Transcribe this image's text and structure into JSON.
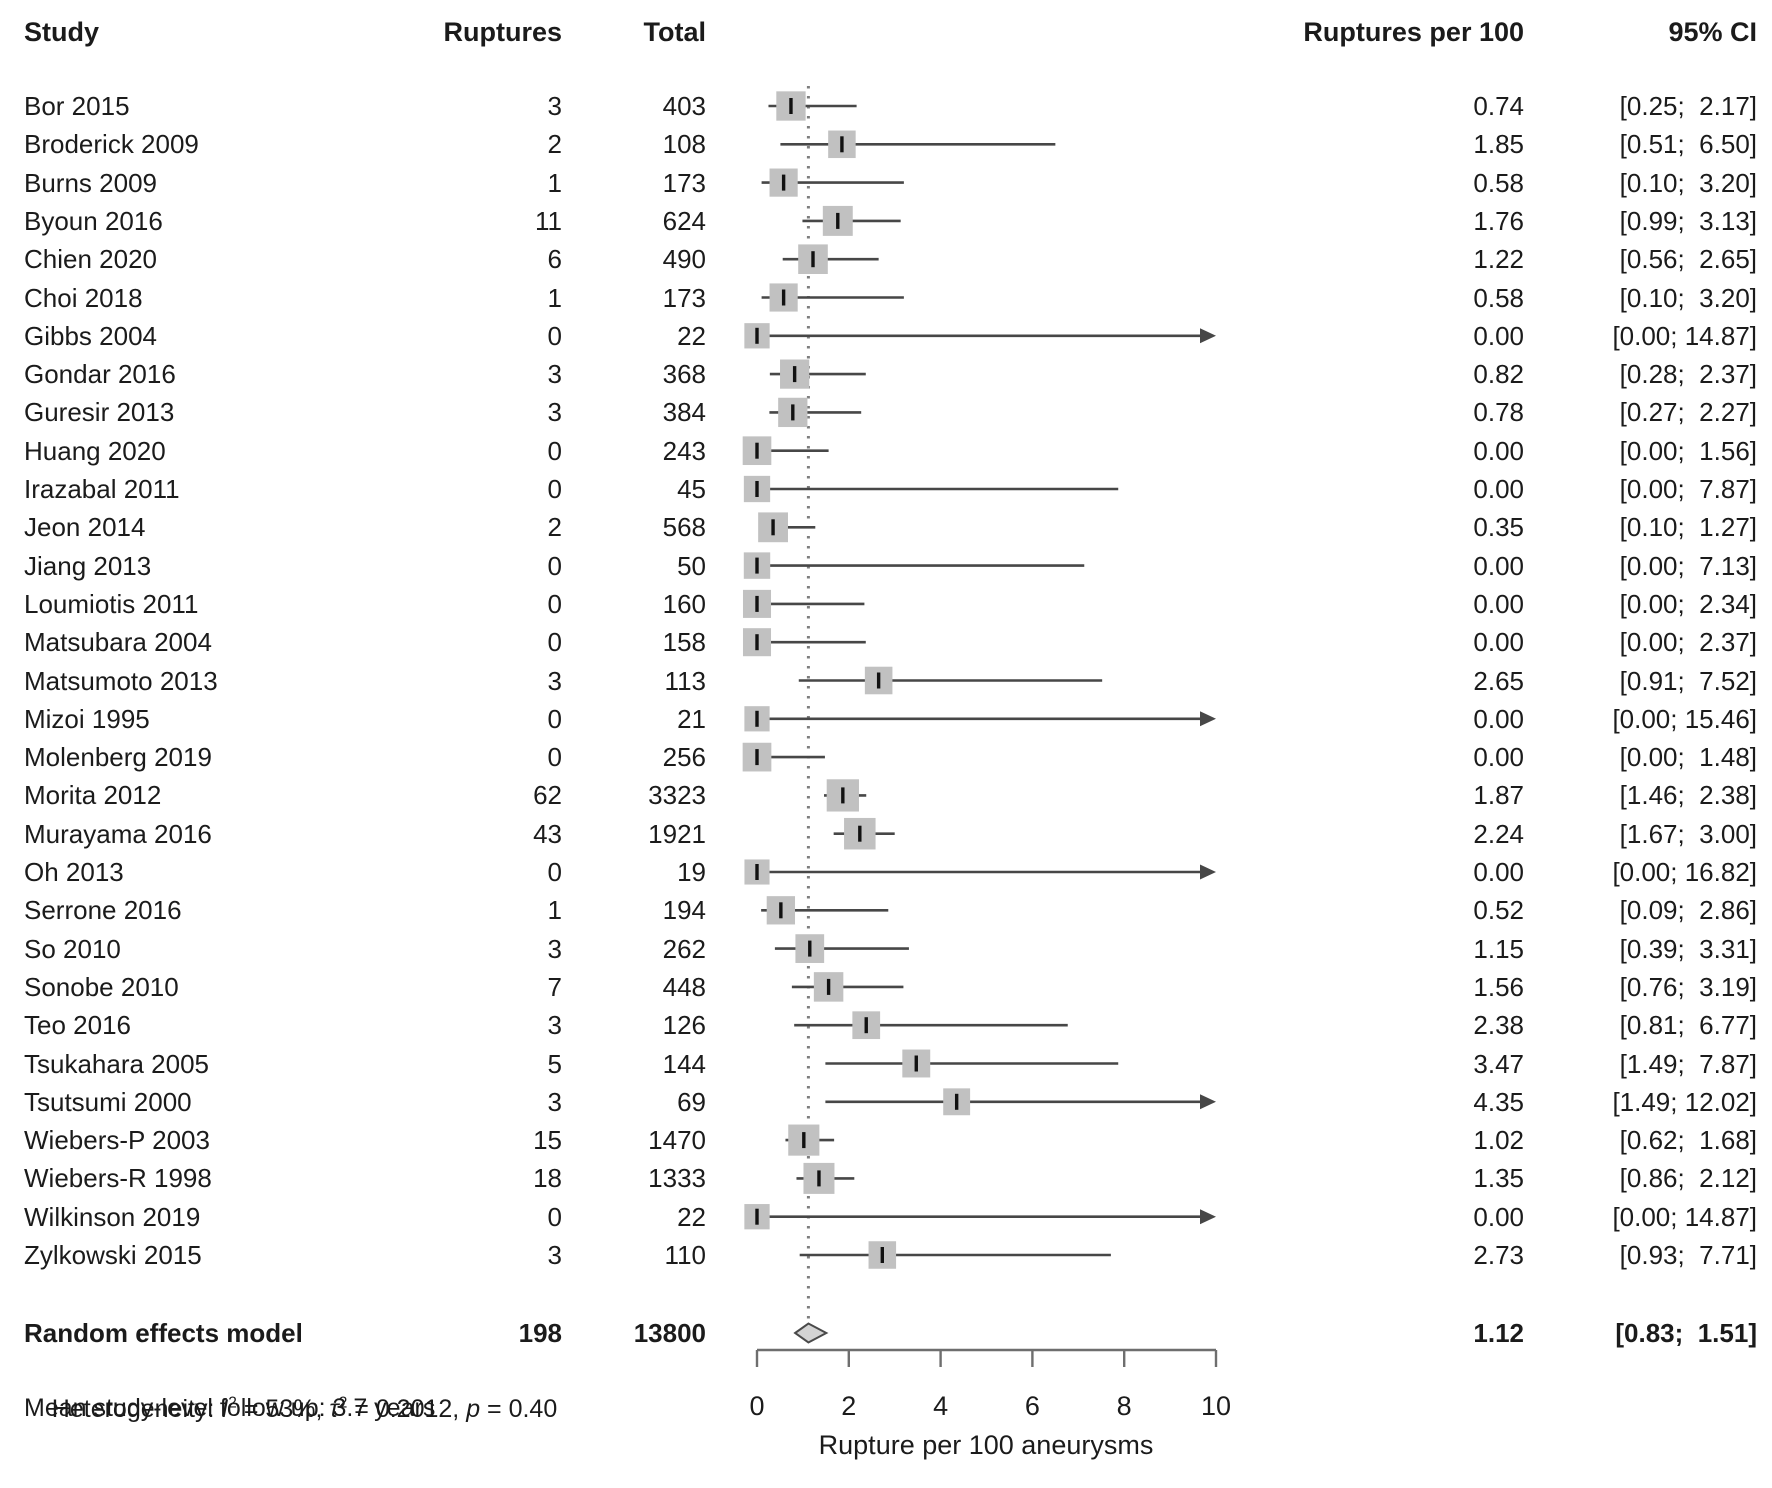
{
  "headers": {
    "study": "Study",
    "ruptures": "Ruptures",
    "total": "Total",
    "rate": "Ruptures per 100",
    "ci": "95% CI"
  },
  "chart_data": {
    "type": "forest",
    "xlabel": "Rupture per 100 aneurysms",
    "axis": {
      "min": 0,
      "max": 10,
      "ticks": [
        0,
        2,
        4,
        6,
        8,
        10
      ]
    },
    "pooled_reference_line": 1.12,
    "studies": [
      {
        "name": "Bor 2015",
        "ruptures": "3",
        "total": "403",
        "total_n": 403,
        "rate": "0.74",
        "est": 0.74,
        "lo": 0.25,
        "hi": 2.17,
        "ci": "[0.25;  2.17]"
      },
      {
        "name": "Broderick 2009",
        "ruptures": "2",
        "total": "108",
        "total_n": 108,
        "rate": "1.85",
        "est": 1.85,
        "lo": 0.51,
        "hi": 6.5,
        "ci": "[0.51;  6.50]"
      },
      {
        "name": "Burns 2009",
        "ruptures": "1",
        "total": "173",
        "total_n": 173,
        "rate": "0.58",
        "est": 0.58,
        "lo": 0.1,
        "hi": 3.2,
        "ci": "[0.10;  3.20]"
      },
      {
        "name": "Byoun 2016",
        "ruptures": "11",
        "total": "624",
        "total_n": 624,
        "rate": "1.76",
        "est": 1.76,
        "lo": 0.99,
        "hi": 3.13,
        "ci": "[0.99;  3.13]"
      },
      {
        "name": "Chien 2020",
        "ruptures": "6",
        "total": "490",
        "total_n": 490,
        "rate": "1.22",
        "est": 1.22,
        "lo": 0.56,
        "hi": 2.65,
        "ci": "[0.56;  2.65]"
      },
      {
        "name": "Choi 2018",
        "ruptures": "1",
        "total": "173",
        "total_n": 173,
        "rate": "0.58",
        "est": 0.58,
        "lo": 0.1,
        "hi": 3.2,
        "ci": "[0.10;  3.20]"
      },
      {
        "name": "Gibbs 2004",
        "ruptures": "0",
        "total": "22",
        "total_n": 22,
        "rate": "0.00",
        "est": 0.0,
        "lo": 0.0,
        "hi": 14.87,
        "ci": "[0.00; 14.87]"
      },
      {
        "name": "Gondar 2016",
        "ruptures": "3",
        "total": "368",
        "total_n": 368,
        "rate": "0.82",
        "est": 0.82,
        "lo": 0.28,
        "hi": 2.37,
        "ci": "[0.28;  2.37]"
      },
      {
        "name": "Guresir 2013",
        "ruptures": "3",
        "total": "384",
        "total_n": 384,
        "rate": "0.78",
        "est": 0.78,
        "lo": 0.27,
        "hi": 2.27,
        "ci": "[0.27;  2.27]"
      },
      {
        "name": "Huang 2020",
        "ruptures": "0",
        "total": "243",
        "total_n": 243,
        "rate": "0.00",
        "est": 0.0,
        "lo": 0.0,
        "hi": 1.56,
        "ci": "[0.00;  1.56]"
      },
      {
        "name": "Irazabal 2011",
        "ruptures": "0",
        "total": "45",
        "total_n": 45,
        "rate": "0.00",
        "est": 0.0,
        "lo": 0.0,
        "hi": 7.87,
        "ci": "[0.00;  7.87]"
      },
      {
        "name": "Jeon 2014",
        "ruptures": "2",
        "total": "568",
        "total_n": 568,
        "rate": "0.35",
        "est": 0.35,
        "lo": 0.1,
        "hi": 1.27,
        "ci": "[0.10;  1.27]"
      },
      {
        "name": "Jiang 2013",
        "ruptures": "0",
        "total": "50",
        "total_n": 50,
        "rate": "0.00",
        "est": 0.0,
        "lo": 0.0,
        "hi": 7.13,
        "ci": "[0.00;  7.13]"
      },
      {
        "name": "Loumiotis 2011",
        "ruptures": "0",
        "total": "160",
        "total_n": 160,
        "rate": "0.00",
        "est": 0.0,
        "lo": 0.0,
        "hi": 2.34,
        "ci": "[0.00;  2.34]"
      },
      {
        "name": "Matsubara 2004",
        "ruptures": "0",
        "total": "158",
        "total_n": 158,
        "rate": "0.00",
        "est": 0.0,
        "lo": 0.0,
        "hi": 2.37,
        "ci": "[0.00;  2.37]"
      },
      {
        "name": "Matsumoto 2013",
        "ruptures": "3",
        "total": "113",
        "total_n": 113,
        "rate": "2.65",
        "est": 2.65,
        "lo": 0.91,
        "hi": 7.52,
        "ci": "[0.91;  7.52]"
      },
      {
        "name": "Mizoi 1995",
        "ruptures": "0",
        "total": "21",
        "total_n": 21,
        "rate": "0.00",
        "est": 0.0,
        "lo": 0.0,
        "hi": 15.46,
        "ci": "[0.00; 15.46]"
      },
      {
        "name": "Molenberg 2019",
        "ruptures": "0",
        "total": "256",
        "total_n": 256,
        "rate": "0.00",
        "est": 0.0,
        "lo": 0.0,
        "hi": 1.48,
        "ci": "[0.00;  1.48]"
      },
      {
        "name": "Morita 2012",
        "ruptures": "62",
        "total": "3323",
        "total_n": 3323,
        "rate": "1.87",
        "est": 1.87,
        "lo": 1.46,
        "hi": 2.38,
        "ci": "[1.46;  2.38]"
      },
      {
        "name": "Murayama 2016",
        "ruptures": "43",
        "total": "1921",
        "total_n": 1921,
        "rate": "2.24",
        "est": 2.24,
        "lo": 1.67,
        "hi": 3.0,
        "ci": "[1.67;  3.00]"
      },
      {
        "name": "Oh 2013",
        "ruptures": "0",
        "total": "19",
        "total_n": 19,
        "rate": "0.00",
        "est": 0.0,
        "lo": 0.0,
        "hi": 16.82,
        "ci": "[0.00; 16.82]"
      },
      {
        "name": "Serrone 2016",
        "ruptures": "1",
        "total": "194",
        "total_n": 194,
        "rate": "0.52",
        "est": 0.52,
        "lo": 0.09,
        "hi": 2.86,
        "ci": "[0.09;  2.86]"
      },
      {
        "name": "So 2010",
        "ruptures": "3",
        "total": "262",
        "total_n": 262,
        "rate": "1.15",
        "est": 1.15,
        "lo": 0.39,
        "hi": 3.31,
        "ci": "[0.39;  3.31]"
      },
      {
        "name": "Sonobe 2010",
        "ruptures": "7",
        "total": "448",
        "total_n": 448,
        "rate": "1.56",
        "est": 1.56,
        "lo": 0.76,
        "hi": 3.19,
        "ci": "[0.76;  3.19]"
      },
      {
        "name": "Teo 2016",
        "ruptures": "3",
        "total": "126",
        "total_n": 126,
        "rate": "2.38",
        "est": 2.38,
        "lo": 0.81,
        "hi": 6.77,
        "ci": "[0.81;  6.77]"
      },
      {
        "name": "Tsukahara 2005",
        "ruptures": "5",
        "total": "144",
        "total_n": 144,
        "rate": "3.47",
        "est": 3.47,
        "lo": 1.49,
        "hi": 7.87,
        "ci": "[1.49;  7.87]"
      },
      {
        "name": "Tsutsumi 2000",
        "ruptures": "3",
        "total": "69",
        "total_n": 69,
        "rate": "4.35",
        "est": 4.35,
        "lo": 1.49,
        "hi": 12.02,
        "ci": "[1.49; 12.02]"
      },
      {
        "name": "Wiebers-P 2003",
        "ruptures": "15",
        "total": "1470",
        "total_n": 1470,
        "rate": "1.02",
        "est": 1.02,
        "lo": 0.62,
        "hi": 1.68,
        "ci": "[0.62;  1.68]"
      },
      {
        "name": "Wiebers-R 1998",
        "ruptures": "18",
        "total": "1333",
        "total_n": 1333,
        "rate": "1.35",
        "est": 1.35,
        "lo": 0.86,
        "hi": 2.12,
        "ci": "[0.86;  2.12]"
      },
      {
        "name": "Wilkinson 2019",
        "ruptures": "0",
        "total": "22",
        "total_n": 22,
        "rate": "0.00",
        "est": 0.0,
        "lo": 0.0,
        "hi": 14.87,
        "ci": "[0.00; 14.87]"
      },
      {
        "name": "Zylkowski 2015",
        "ruptures": "3",
        "total": "110",
        "total_n": 110,
        "rate": "2.73",
        "est": 2.73,
        "lo": 0.93,
        "hi": 7.71,
        "ci": "[0.93;  7.71]"
      }
    ],
    "summary": {
      "name": "Random effects model",
      "ruptures": "198",
      "total": "13800",
      "rate": "1.12",
      "est": 1.12,
      "lo": 0.83,
      "hi": 1.51,
      "ci": "[0.83;  1.51]"
    },
    "colors": {
      "square": "#c1c1c1",
      "ci_line": "#474747",
      "estimate_tick": "#111111",
      "diamond_fill": "#d3d3d3",
      "diamond_stroke": "#4a4a4a",
      "axis": "#6e6e6e",
      "dotted_line": "#7e7e7e",
      "text": "#1b1b1b"
    }
  },
  "footer": {
    "heterogeneity": {
      "prefix": "Heterogeneity: ",
      "i_symbol": "I",
      "i_sup": "2",
      "seg1": " = 53%, ",
      "tau_symbol": "τ",
      "tau_sup": "2",
      "seg2": " = 0.2012, ",
      "p_symbol": "p",
      "seg3": " = 0.40"
    },
    "followup": "Mean study-level follow up: 3.7 years"
  }
}
